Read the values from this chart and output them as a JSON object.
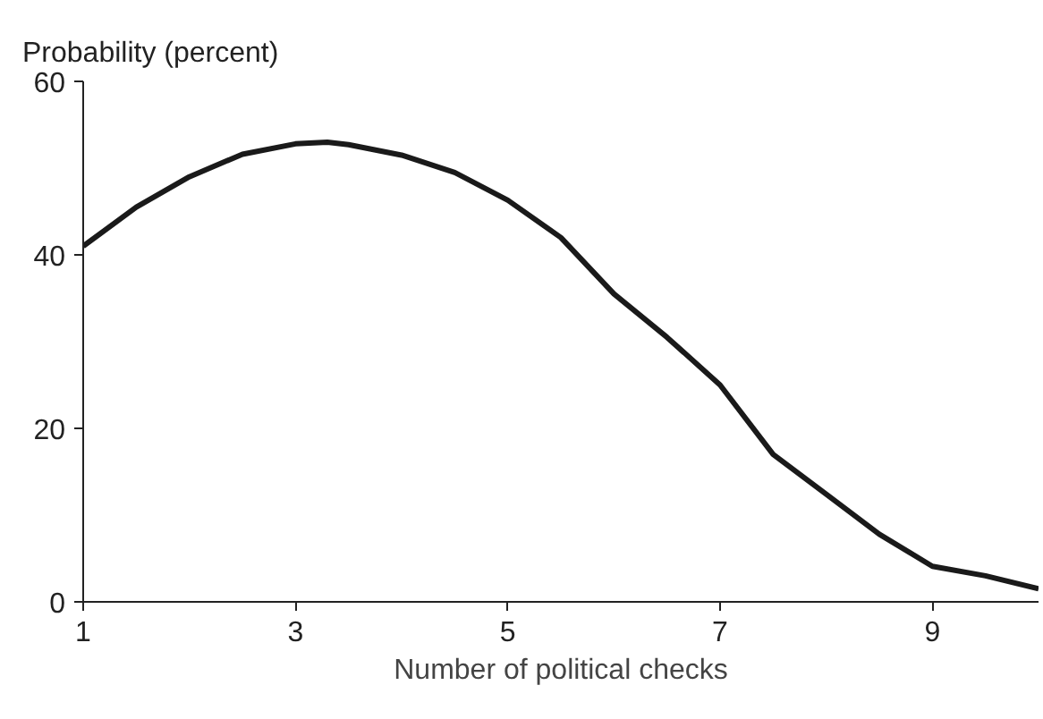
{
  "chart_data": {
    "type": "line",
    "xlabel": "Number of political checks",
    "ylabel": "Probability (percent)",
    "xlim": [
      1,
      10
    ],
    "xticks": [
      1,
      3,
      5,
      7,
      9
    ],
    "ylim": [
      0,
      60
    ],
    "yticks": [
      0,
      20,
      40,
      60
    ],
    "grid": false,
    "marker": "none",
    "line_style": "solid",
    "series": [
      {
        "color": "#1a1a1a",
        "x": [
          1,
          1.5,
          2,
          2.5,
          3,
          3.3,
          3.5,
          4,
          4.5,
          5,
          5.5,
          6,
          6.5,
          7,
          7.5,
          8,
          8.5,
          9,
          9.5,
          10
        ],
        "values": [
          41,
          45.5,
          49,
          51.6,
          52.8,
          53,
          52.7,
          51.5,
          49.5,
          46.3,
          42,
          35.5,
          30.5,
          25,
          17,
          12.4,
          7.8,
          4.1,
          3,
          1.5
        ]
      }
    ]
  }
}
